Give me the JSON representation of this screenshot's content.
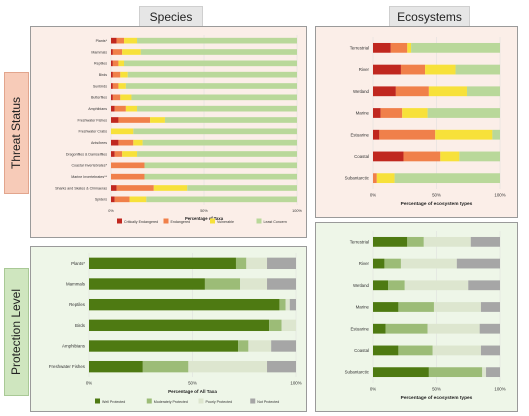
{
  "headers": {
    "species": "Species",
    "ecosystems": "Ecosystems"
  },
  "row_labels": {
    "threat": "Threat Status",
    "protection": "Protection Level"
  },
  "chart_data": [
    {
      "id": "species_threat",
      "type": "bar",
      "orientation": "horizontal",
      "stacked": true,
      "categories": [
        "Plants*",
        "Mammals",
        "Reptiles",
        "Birds",
        "Sunbirds",
        "Butterflies",
        "Amphibians",
        "Freshwater Fishes",
        "Freshwater Crabs",
        "Ants/bees",
        "Dragonflies & Damselflies",
        "Coastal Invertebrates*",
        "Marine Invertebrates**",
        "Sharks and Skates & Chimaeras",
        "Spiders"
      ],
      "series": [
        {
          "name": "Critically Endangered",
          "values": [
            3,
            1,
            1,
            1,
            1,
            1,
            2,
            4,
            0,
            4,
            2,
            0,
            0,
            3,
            2
          ]
        },
        {
          "name": "Endangered",
          "values": [
            4,
            5,
            3,
            4,
            3,
            4,
            6,
            17,
            0,
            8,
            4,
            18,
            18,
            20,
            8
          ]
        },
        {
          "name": "Vulnerable",
          "values": [
            7,
            10,
            3,
            4,
            4,
            6,
            6,
            8,
            12,
            5,
            8,
            0,
            0,
            18,
            9
          ]
        },
        {
          "name": "Least Concern",
          "values": [
            86,
            84,
            93,
            91,
            92,
            89,
            86,
            71,
            88,
            83,
            86,
            82,
            82,
            59,
            81
          ]
        }
      ],
      "xlabel": "Percentage of Taxa",
      "xlim": [
        0,
        100
      ],
      "xticks": [
        "0%",
        "50%",
        "100%"
      ],
      "colors": [
        "#c0271f",
        "#f0804a",
        "#f7e13a",
        "#b9d89a"
      ],
      "legend_position": "bottom"
    },
    {
      "id": "ecosystem_threat",
      "type": "bar",
      "orientation": "horizontal",
      "stacked": true,
      "categories": [
        "Terrestrial",
        "River",
        "Wetland",
        "Marine",
        "Estuarine",
        "Coastal",
        "Subantarctic"
      ],
      "series": [
        {
          "name": "Critically Endangered",
          "values": [
            14,
            22,
            18,
            6,
            5,
            24,
            0
          ]
        },
        {
          "name": "Endangered",
          "values": [
            13,
            19,
            26,
            17,
            44,
            29,
            3
          ]
        },
        {
          "name": "Vulnerable",
          "values": [
            3,
            24,
            30,
            20,
            45,
            15,
            14
          ]
        },
        {
          "name": "Least Concern",
          "values": [
            70,
            35,
            26,
            57,
            6,
            32,
            83
          ]
        }
      ],
      "xlabel": "Percentage of ecosystem types",
      "xlim": [
        0,
        100
      ],
      "xticks": [
        "0%",
        "50%",
        "100%"
      ],
      "colors": [
        "#c0271f",
        "#f0804a",
        "#f7e13a",
        "#b9d89a"
      ]
    },
    {
      "id": "species_protection",
      "type": "bar",
      "orientation": "horizontal",
      "stacked": true,
      "categories": [
        "Plants*",
        "Mammals",
        "Reptiles",
        "Birds",
        "Amphibians",
        "Freshwater Fishes"
      ],
      "series": [
        {
          "name": "Well Protected",
          "values": [
            71,
            56,
            92,
            87,
            72,
            26
          ]
        },
        {
          "name": "Moderately Protected",
          "values": [
            5,
            17,
            3,
            6,
            5,
            22
          ]
        },
        {
          "name": "Poorly Protected",
          "values": [
            10,
            13,
            2,
            7,
            11,
            38
          ]
        },
        {
          "name": "Not Protected",
          "values": [
            14,
            14,
            3,
            0,
            12,
            14
          ]
        }
      ],
      "xlabel": "Percentage of All Taxa",
      "xlim": [
        0,
        100
      ],
      "xticks": [
        "0%",
        "50%",
        "100%"
      ],
      "colors": [
        "#4e7a12",
        "#9cbc77",
        "#dde6cf",
        "#a6a6a6"
      ],
      "legend_position": "bottom"
    },
    {
      "id": "ecosystem_protection",
      "type": "bar",
      "orientation": "horizontal",
      "stacked": true,
      "categories": [
        "Terrestrial",
        "River",
        "Wetland",
        "Marine",
        "Estuarine",
        "Coastal",
        "Subantarctic"
      ],
      "series": [
        {
          "name": "Well Protected",
          "values": [
            27,
            9,
            12,
            20,
            10,
            20,
            44
          ]
        },
        {
          "name": "Moderately Protected",
          "values": [
            13,
            13,
            13,
            28,
            33,
            27,
            42
          ]
        },
        {
          "name": "Poorly Protected",
          "values": [
            37,
            44,
            50,
            37,
            41,
            38,
            3
          ]
        },
        {
          "name": "Not Protected",
          "values": [
            23,
            34,
            25,
            15,
            16,
            15,
            11
          ]
        }
      ],
      "xlabel": "Percentage of ecosystem types",
      "xlim": [
        0,
        100
      ],
      "xticks": [
        "0%",
        "50%",
        "100%"
      ],
      "colors": [
        "#4e7a12",
        "#9cbc77",
        "#dde6cf",
        "#a6a6a6"
      ]
    }
  ]
}
